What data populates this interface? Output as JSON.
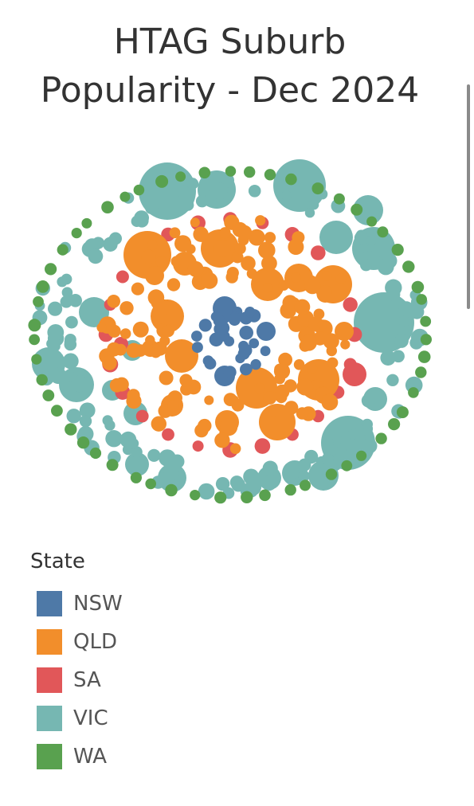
{
  "title_line1": "HTAG Suburb",
  "title_line2": "Popularity - Dec 2024",
  "legend": {
    "title": "State",
    "items": [
      {
        "label": "NSW",
        "color": "#4e79a7"
      },
      {
        "label": "QLD",
        "color": "#f28e2b"
      },
      {
        "label": "SA",
        "color": "#e15759"
      },
      {
        "label": "VIC",
        "color": "#76b7b2"
      },
      {
        "label": "WA",
        "color": "#59a14f"
      }
    ]
  },
  "chart_data": {
    "type": "packed-bubble",
    "color_by": "State",
    "series": [
      {
        "name": "NSW",
        "color": "#4e79a7",
        "bubble_count": 34
      },
      {
        "name": "QLD",
        "color": "#f28e2b",
        "bubble_count": 150
      },
      {
        "name": "SA",
        "color": "#e15759",
        "bubble_count": 26
      },
      {
        "name": "VIC",
        "color": "#76b7b2",
        "bubble_count": 150
      },
      {
        "name": "WA",
        "color": "#59a14f",
        "bubble_count": 55
      }
    ]
  }
}
